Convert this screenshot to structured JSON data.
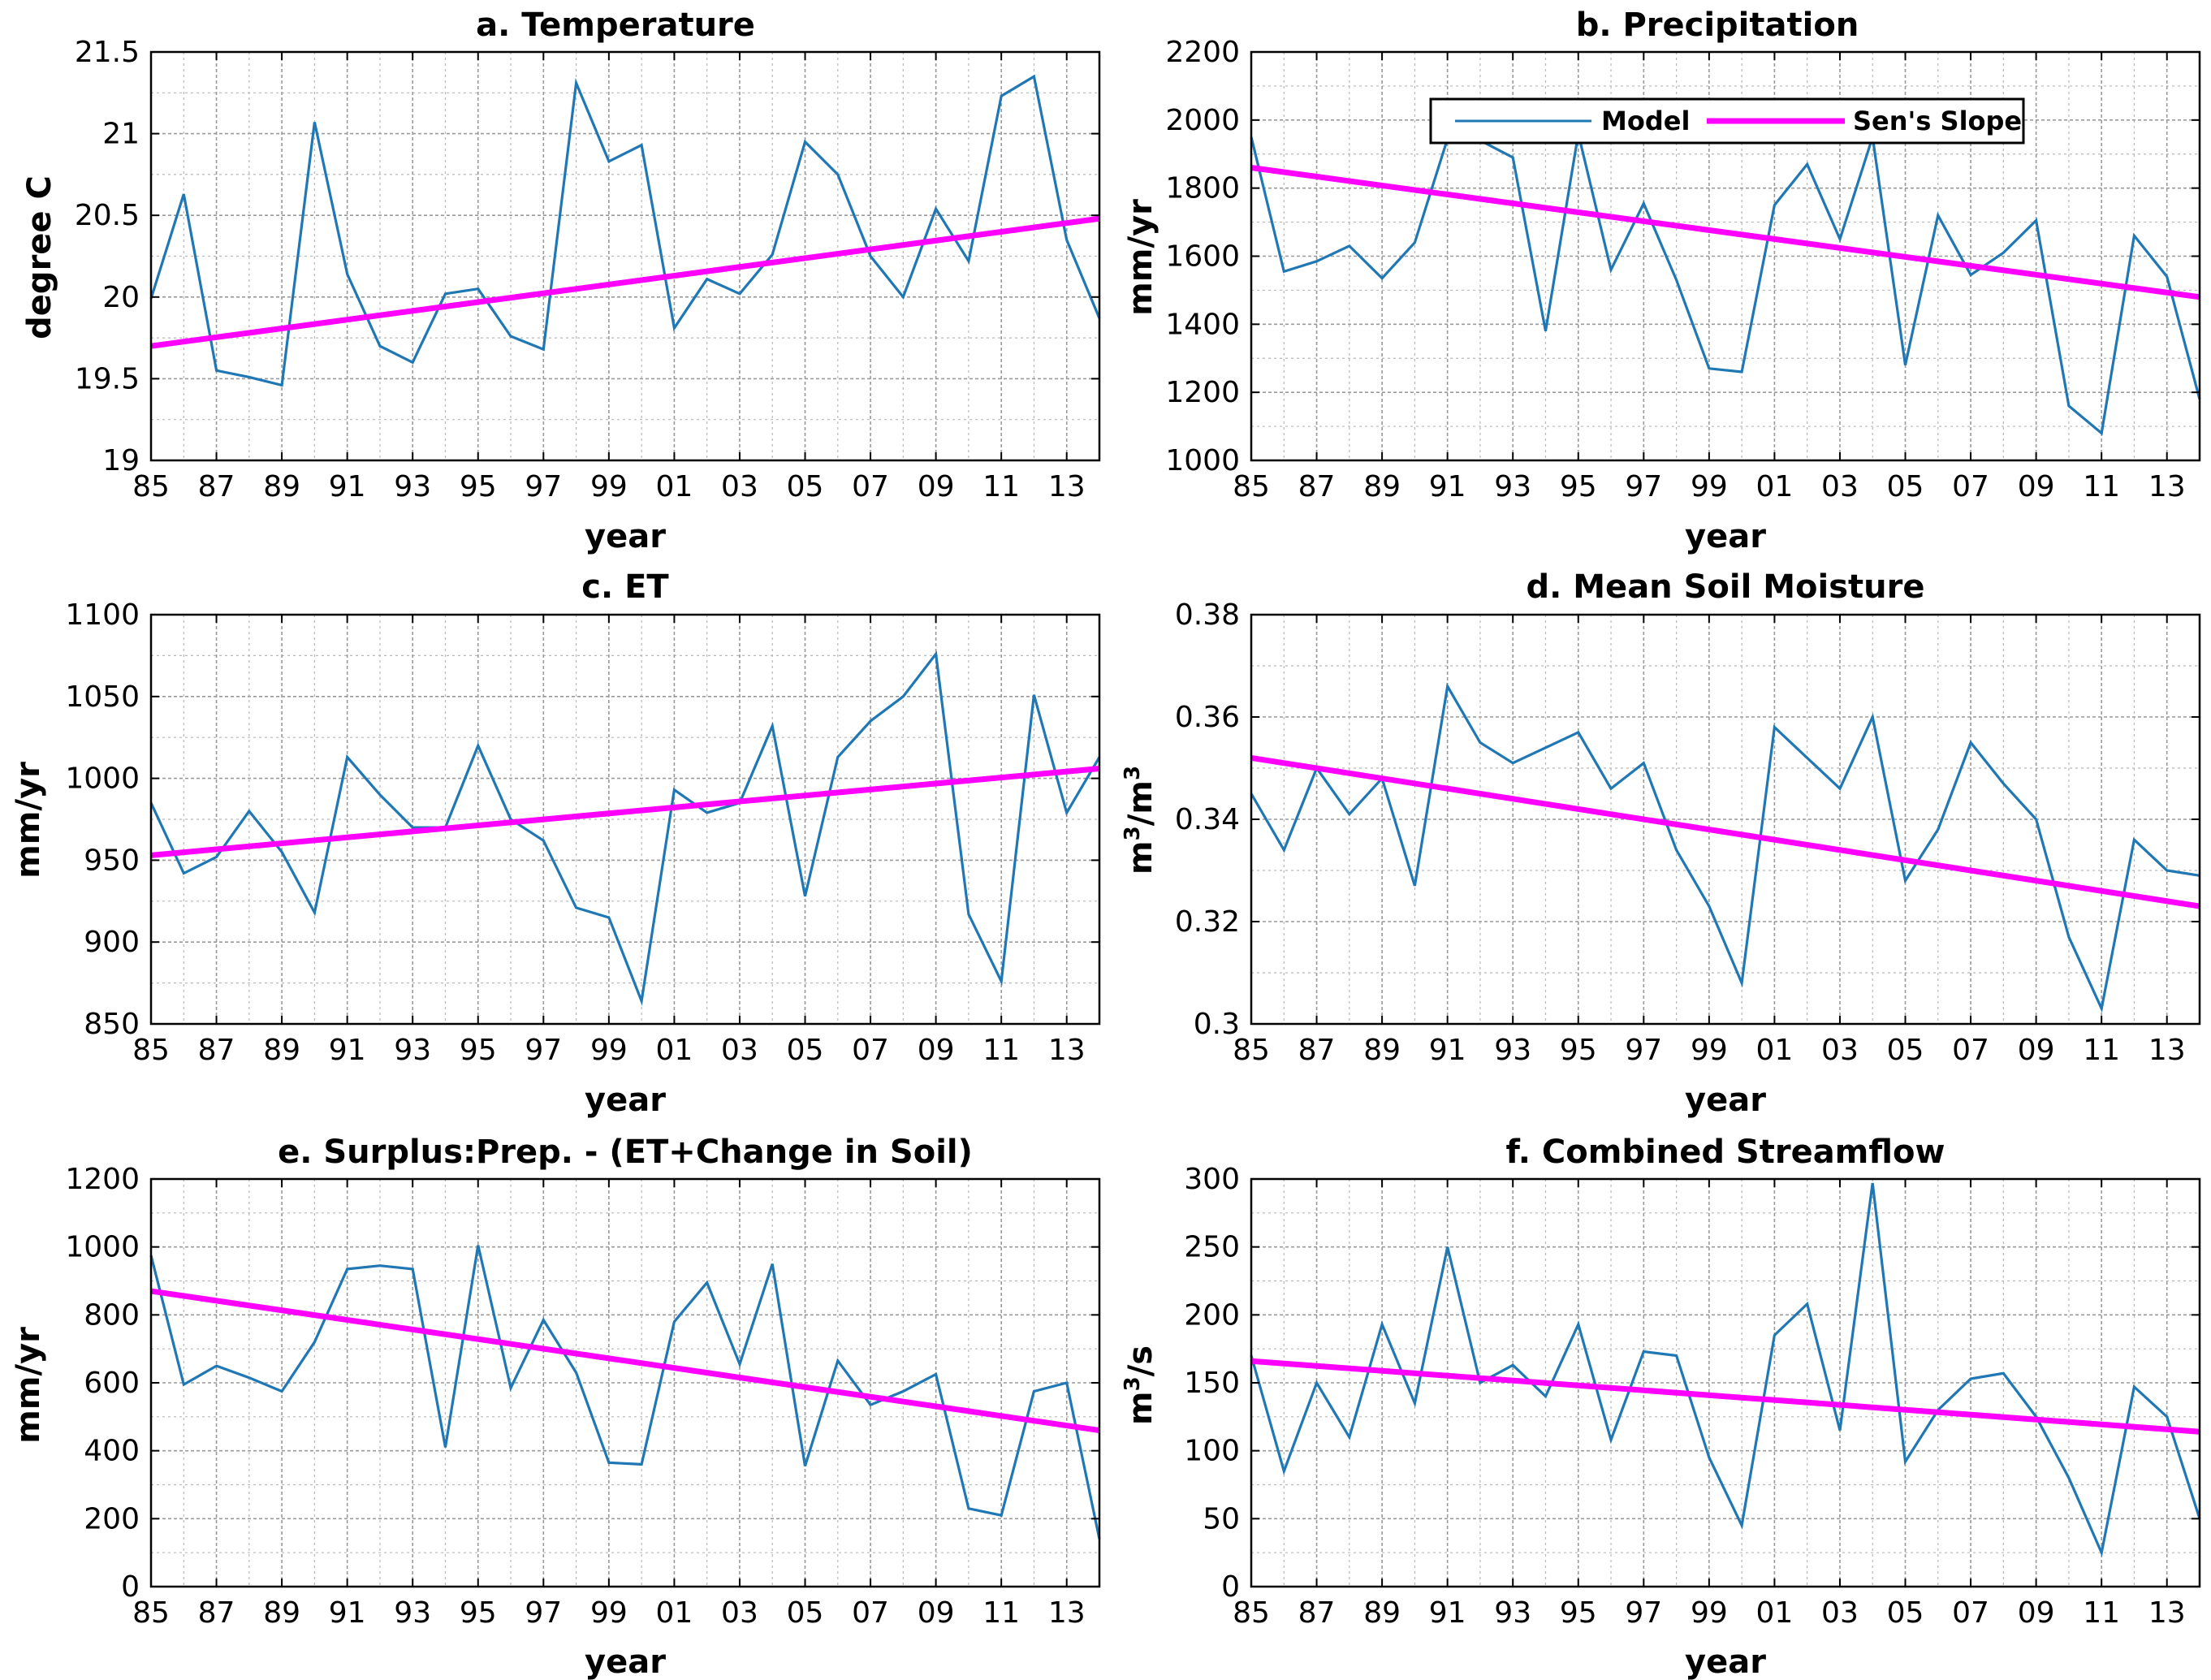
{
  "colors": {
    "model": "#1f77b4",
    "slope": "#ff00ff",
    "grid": "#b8b8b8",
    "axis": "#000000"
  },
  "legend": {
    "model_label": "Model",
    "slope_label": "Sen's Slope"
  },
  "chart_data": [
    {
      "id": "a",
      "type": "line",
      "title": "a. Temperature",
      "xlabel": "year",
      "ylabel": "degree C",
      "ylabel_html": "",
      "x": [
        1985,
        1986,
        1987,
        1988,
        1989,
        1990,
        1991,
        1992,
        1993,
        1994,
        1995,
        1996,
        1997,
        1998,
        1999,
        2000,
        2001,
        2002,
        2003,
        2004,
        2005,
        2006,
        2007,
        2008,
        2009,
        2010,
        2011,
        2012,
        2013,
        2014
      ],
      "xticks": [
        1985,
        1987,
        1989,
        1991,
        1993,
        1995,
        1997,
        1999,
        2001,
        2003,
        2005,
        2007,
        2009,
        2011,
        2013
      ],
      "xticklabels": [
        "85",
        "87",
        "89",
        "91",
        "93",
        "95",
        "97",
        "99",
        "01",
        "03",
        "05",
        "07",
        "09",
        "11",
        "13"
      ],
      "xlim": [
        1985,
        2014
      ],
      "ylim": [
        19,
        21.5
      ],
      "yticks": [
        19,
        19.5,
        20,
        20.5,
        21,
        21.5
      ],
      "yticklabels": [
        "19",
        "19.5",
        "20",
        "20.5",
        "21",
        "21.5"
      ],
      "series": [
        {
          "name": "Model",
          "values": [
            19.99,
            20.63,
            19.55,
            19.51,
            19.46,
            21.07,
            20.14,
            19.7,
            19.6,
            20.02,
            20.05,
            19.76,
            19.68,
            21.31,
            20.83,
            20.93,
            19.81,
            20.11,
            20.02,
            20.26,
            20.95,
            20.75,
            20.25,
            20.0,
            20.54,
            20.22,
            21.23,
            21.35,
            20.35,
            19.87
          ]
        },
        {
          "name": "Sen's Slope",
          "values": [
            19.7,
            20.48
          ],
          "x": [
            1985,
            2014
          ]
        }
      ]
    },
    {
      "id": "b",
      "type": "line",
      "title": "b. Precipitation",
      "xlabel": "year",
      "ylabel": "mm/yr",
      "x": [
        1985,
        1986,
        1987,
        1988,
        1989,
        1990,
        1991,
        1992,
        1993,
        1994,
        1995,
        1996,
        1997,
        1998,
        1999,
        2000,
        2001,
        2002,
        2003,
        2004,
        2005,
        2006,
        2007,
        2008,
        2009,
        2010,
        2011,
        2012,
        2013,
        2014
      ],
      "xticks": [
        1985,
        1987,
        1989,
        1991,
        1993,
        1995,
        1997,
        1999,
        2001,
        2003,
        2005,
        2007,
        2009,
        2011,
        2013
      ],
      "xticklabels": [
        "85",
        "87",
        "89",
        "91",
        "93",
        "95",
        "97",
        "99",
        "01",
        "03",
        "05",
        "07",
        "09",
        "11",
        "13"
      ],
      "xlim": [
        1985,
        2014
      ],
      "ylim": [
        1000,
        2200
      ],
      "yticks": [
        1000,
        1200,
        1400,
        1600,
        1800,
        2000,
        2200
      ],
      "yticklabels": [
        "1000",
        "1200",
        "1400",
        "1600",
        "1800",
        "2000",
        "2200"
      ],
      "legend_location": "top",
      "series": [
        {
          "name": "Model",
          "values": [
            1950,
            1555,
            1585,
            1630,
            1535,
            1640,
            1945,
            1940,
            1890,
            1380,
            1960,
            1560,
            1755,
            1530,
            1270,
            1260,
            1750,
            1870,
            1650,
            1950,
            1280,
            1720,
            1545,
            1610,
            1705,
            1160,
            1080,
            1660,
            1540,
            1180
          ]
        },
        {
          "name": "Sen's Slope",
          "values": [
            1860,
            1480
          ],
          "x": [
            1985,
            2014
          ]
        }
      ]
    },
    {
      "id": "c",
      "type": "line",
      "title": "c. ET",
      "xlabel": "year",
      "ylabel": "mm/yr",
      "x": [
        1985,
        1986,
        1987,
        1988,
        1989,
        1990,
        1991,
        1992,
        1993,
        1994,
        1995,
        1996,
        1997,
        1998,
        1999,
        2000,
        2001,
        2002,
        2003,
        2004,
        2005,
        2006,
        2007,
        2008,
        2009,
        2010,
        2011,
        2012,
        2013,
        2014
      ],
      "xticks": [
        1985,
        1987,
        1989,
        1991,
        1993,
        1995,
        1997,
        1999,
        2001,
        2003,
        2005,
        2007,
        2009,
        2011,
        2013
      ],
      "xticklabels": [
        "85",
        "87",
        "89",
        "91",
        "93",
        "95",
        "97",
        "99",
        "01",
        "03",
        "05",
        "07",
        "09",
        "11",
        "13"
      ],
      "xlim": [
        1985,
        2014
      ],
      "ylim": [
        850,
        1100
      ],
      "yticks": [
        850,
        900,
        950,
        1000,
        1050,
        1100
      ],
      "yticklabels": [
        "850",
        "900",
        "950",
        "1000",
        "1050",
        "1100"
      ],
      "series": [
        {
          "name": "Model",
          "values": [
            985,
            942,
            952,
            980,
            955,
            918,
            1013,
            990,
            970,
            970,
            1020,
            975,
            962,
            921,
            915,
            864,
            993,
            979,
            985,
            1032,
            928,
            1013,
            1035,
            1050,
            1076,
            917,
            876,
            1051,
            979,
            1013
          ]
        },
        {
          "name": "Sen's Slope",
          "values": [
            953,
            1006
          ],
          "x": [
            1985,
            2014
          ]
        }
      ]
    },
    {
      "id": "d",
      "type": "line",
      "title": "d. Mean Soil Moisture",
      "xlabel": "year",
      "ylabel": "m3/m3",
      "x": [
        1985,
        1986,
        1987,
        1988,
        1989,
        1990,
        1991,
        1992,
        1993,
        1994,
        1995,
        1996,
        1997,
        1998,
        1999,
        2000,
        2001,
        2002,
        2003,
        2004,
        2005,
        2006,
        2007,
        2008,
        2009,
        2010,
        2011,
        2012,
        2013,
        2014
      ],
      "xticks": [
        1985,
        1987,
        1989,
        1991,
        1993,
        1995,
        1997,
        1999,
        2001,
        2003,
        2005,
        2007,
        2009,
        2011,
        2013
      ],
      "xticklabels": [
        "85",
        "87",
        "89",
        "91",
        "93",
        "95",
        "97",
        "99",
        "01",
        "03",
        "05",
        "07",
        "09",
        "11",
        "13"
      ],
      "xlim": [
        1985,
        2014
      ],
      "ylim": [
        0.3,
        0.38
      ],
      "yticks": [
        0.3,
        0.32,
        0.34,
        0.36,
        0.38
      ],
      "yticklabels": [
        "0.3",
        "0.32",
        "0.34",
        "0.36",
        "0.38"
      ],
      "series": [
        {
          "name": "Model",
          "values": [
            0.345,
            0.334,
            0.35,
            0.341,
            0.348,
            0.327,
            0.366,
            0.355,
            0.351,
            0.354,
            0.357,
            0.346,
            0.351,
            0.334,
            0.323,
            0.308,
            0.358,
            0.352,
            0.346,
            0.36,
            0.328,
            0.338,
            0.355,
            0.347,
            0.34,
            0.317,
            0.303,
            0.336,
            0.33,
            0.329
          ]
        },
        {
          "name": "Sen's Slope",
          "values": [
            0.352,
            0.323
          ],
          "x": [
            1985,
            2014
          ]
        }
      ]
    },
    {
      "id": "e",
      "type": "line",
      "title": "e. Surplus:Prep. - (ET+Change in Soil)",
      "xlabel": "year",
      "ylabel": "mm/yr",
      "x": [
        1985,
        1986,
        1987,
        1988,
        1989,
        1990,
        1991,
        1992,
        1993,
        1994,
        1995,
        1996,
        1997,
        1998,
        1999,
        2000,
        2001,
        2002,
        2003,
        2004,
        2005,
        2006,
        2007,
        2008,
        2009,
        2010,
        2011,
        2012,
        2013,
        2014
      ],
      "xticks": [
        1985,
        1987,
        1989,
        1991,
        1993,
        1995,
        1997,
        1999,
        2001,
        2003,
        2005,
        2007,
        2009,
        2011,
        2013
      ],
      "xticklabels": [
        "85",
        "87",
        "89",
        "91",
        "93",
        "95",
        "97",
        "99",
        "01",
        "03",
        "05",
        "07",
        "09",
        "11",
        "13"
      ],
      "xlim": [
        1985,
        2014
      ],
      "ylim": [
        0,
        1200
      ],
      "yticks": [
        0,
        200,
        400,
        600,
        800,
        1000,
        1200
      ],
      "yticklabels": [
        "0",
        "200",
        "400",
        "600",
        "800",
        "1000",
        "1200"
      ],
      "series": [
        {
          "name": "Model",
          "values": [
            975,
            595,
            650,
            615,
            575,
            720,
            935,
            945,
            935,
            410,
            1005,
            585,
            785,
            630,
            365,
            360,
            780,
            895,
            655,
            950,
            355,
            665,
            535,
            575,
            625,
            230,
            210,
            575,
            600,
            140
          ]
        },
        {
          "name": "Sen's Slope",
          "values": [
            870,
            460
          ],
          "x": [
            1985,
            2014
          ]
        }
      ]
    },
    {
      "id": "f",
      "type": "line",
      "title": "f. Combined Streamflow",
      "xlabel": "year",
      "ylabel": "m3/s",
      "x": [
        1985,
        1986,
        1987,
        1988,
        1989,
        1990,
        1991,
        1992,
        1993,
        1994,
        1995,
        1996,
        1997,
        1998,
        1999,
        2000,
        2001,
        2002,
        2003,
        2004,
        2005,
        2006,
        2007,
        2008,
        2009,
        2010,
        2011,
        2012,
        2013,
        2014
      ],
      "xticks": [
        1985,
        1987,
        1989,
        1991,
        1993,
        1995,
        1997,
        1999,
        2001,
        2003,
        2005,
        2007,
        2009,
        2011,
        2013
      ],
      "xticklabels": [
        "85",
        "87",
        "89",
        "91",
        "93",
        "95",
        "97",
        "99",
        "01",
        "03",
        "05",
        "07",
        "09",
        "11",
        "13"
      ],
      "xlim": [
        1985,
        2014
      ],
      "ylim": [
        0,
        300
      ],
      "yticks": [
        0,
        50,
        100,
        150,
        200,
        250,
        300
      ],
      "yticklabels": [
        "0",
        "50",
        "100",
        "150",
        "200",
        "250",
        "300"
      ],
      "series": [
        {
          "name": "Model",
          "values": [
            170,
            85,
            150,
            110,
            193,
            135,
            250,
            150,
            163,
            140,
            193,
            108,
            173,
            170,
            95,
            45,
            185,
            208,
            115,
            297,
            92,
            130,
            153,
            157,
            125,
            80,
            25,
            147,
            125,
            50
          ]
        },
        {
          "name": "Sen's Slope",
          "values": [
            166,
            114
          ],
          "x": [
            1985,
            2014
          ]
        }
      ]
    }
  ]
}
